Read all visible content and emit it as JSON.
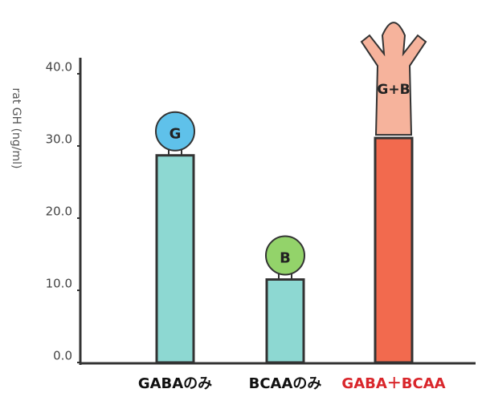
{
  "chart_data": {
    "type": "bar",
    "y_label": "rat GH (ng/ml)",
    "categories": [
      "GABAのみ",
      "BCAAのみ",
      "GABA＋BCAA"
    ],
    "values": [
      28.7,
      11.5,
      31.1
    ],
    "colors": [
      "#8dd8d2",
      "#8dd8d2",
      "#f26a4e"
    ],
    "label_colors": [
      "#111111",
      "#111111",
      "#d9262b"
    ],
    "annotations": [
      "G",
      "B",
      "G+B"
    ],
    "ylim": [
      0,
      40
    ],
    "yticks": [
      {
        "value": 0,
        "label": "0.0"
      },
      {
        "value": 10,
        "label": "10.0"
      },
      {
        "value": 20,
        "label": "20.0"
      },
      {
        "value": 30,
        "label": "30.0"
      },
      {
        "value": 40,
        "label": "40.0"
      }
    ],
    "grid": false
  }
}
